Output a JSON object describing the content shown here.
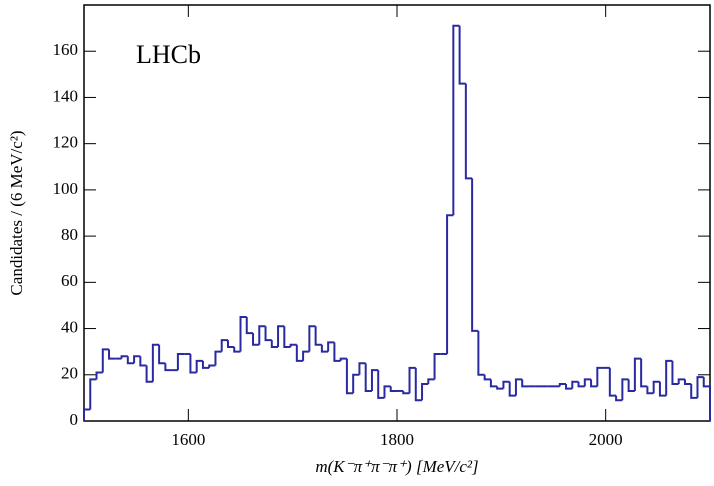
{
  "chart_data": {
    "type": "histogram",
    "annotation": "LHCb",
    "xlabel": "m(K⁻π⁺π⁻π⁺) [MeV/c²]",
    "ylabel": "Candidates / (6 MeV/c²)",
    "color": "#2a2aa0",
    "bins": [
      1500,
      1506,
      1512,
      1518,
      1524,
      1530,
      1536,
      1542,
      1548,
      1554,
      1560,
      1566,
      1572,
      1578,
      1584,
      1590,
      1596,
      1602,
      1608,
      1614,
      1620,
      1626,
      1632,
      1638,
      1644,
      1650,
      1656,
      1662,
      1668,
      1674,
      1680,
      1686,
      1692,
      1698,
      1704,
      1710,
      1716,
      1722,
      1728,
      1734,
      1740,
      1746,
      1752,
      1758,
      1764,
      1770,
      1776,
      1782,
      1788,
      1794,
      1800,
      1806,
      1812,
      1818,
      1824,
      1830,
      1836,
      1842,
      1848,
      1854,
      1860,
      1866,
      1872,
      1878,
      1884,
      1890,
      1896,
      1902,
      1908,
      1914,
      1920,
      1926,
      1932,
      1938,
      1944,
      1950,
      1956,
      1962,
      1968,
      1974,
      1980,
      1986,
      1992,
      1998,
      2004,
      2010,
      2016,
      2022,
      2028,
      2034,
      2040,
      2046,
      2052,
      2058,
      2064,
      2070,
      2076,
      2082,
      2088,
      2094,
      2100
    ],
    "values": [
      5,
      18,
      21,
      31,
      27,
      27,
      28,
      25,
      28,
      24,
      17,
      33,
      25,
      22,
      22,
      29,
      29,
      21,
      26,
      23,
      24,
      30,
      35,
      32,
      30,
      45,
      38,
      33,
      41,
      35,
      32,
      41,
      32,
      33,
      26,
      30,
      41,
      33,
      30,
      34,
      26,
      27,
      12,
      20,
      25,
      13,
      22,
      10,
      15,
      13,
      13,
      12,
      23,
      9,
      16,
      18,
      29,
      29,
      89,
      171,
      146,
      105,
      39,
      20,
      18,
      15,
      14,
      17,
      11,
      18,
      15,
      15,
      15,
      15,
      15,
      15,
      16,
      14,
      17,
      15,
      18,
      15,
      23,
      23,
      11,
      9,
      18,
      13,
      27,
      15,
      12,
      17,
      11,
      26,
      16,
      18,
      16,
      10,
      19,
      15
    ],
    "xlim": [
      1500,
      2100
    ],
    "ylim": [
      0,
      180
    ],
    "xticks": [
      1600,
      1800,
      2000
    ],
    "yticks": [
      0,
      20,
      40,
      60,
      80,
      100,
      120,
      140,
      160
    ]
  }
}
